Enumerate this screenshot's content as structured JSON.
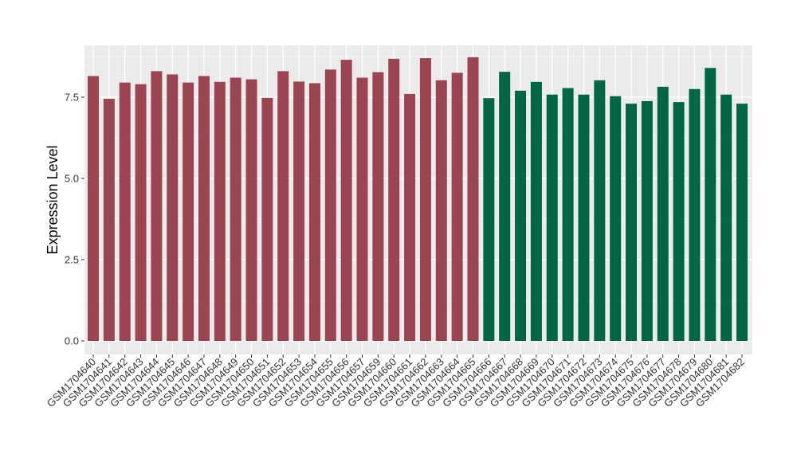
{
  "chart_data": {
    "type": "bar",
    "title": "",
    "xlabel": "",
    "ylabel": "Expression Level",
    "ylim": [
      0,
      8.9
    ],
    "yticks": [
      0.0,
      2.5,
      5.0,
      7.5
    ],
    "ytick_labels": [
      "0.0",
      "2.5",
      "5.0",
      "7.5"
    ],
    "grid": true,
    "legend": "none",
    "panel_background": "#EBEBEB",
    "grid_color": "#FFFFFF",
    "categories": [
      "GSM1704640",
      "GSM1704641",
      "GSM1704642",
      "GSM1704643",
      "GSM1704644",
      "GSM1704645",
      "GSM1704646",
      "GSM1704647",
      "GSM1704648",
      "GSM1704649",
      "GSM1704650",
      "GSM1704651",
      "GSM1704652",
      "GSM1704653",
      "GSM1704654",
      "GSM1704655",
      "GSM1704656",
      "GSM1704657",
      "GSM1704659",
      "GSM1704660",
      "GSM1704661",
      "GSM1704662",
      "GSM1704663",
      "GSM1704664",
      "GSM1704665",
      "GSM1704666",
      "GSM1704667",
      "GSM1704668",
      "GSM1704669",
      "GSM1704670",
      "GSM1704671",
      "GSM1704672",
      "GSM1704673",
      "GSM1704674",
      "GSM1704675",
      "GSM1704676",
      "GSM1704677",
      "GSM1704678",
      "GSM1704679",
      "GSM1704680",
      "GSM1704681",
      "GSM1704682"
    ],
    "values": [
      8.15,
      7.45,
      7.95,
      7.9,
      8.3,
      8.2,
      7.95,
      8.15,
      7.97,
      8.1,
      8.05,
      7.48,
      8.3,
      7.98,
      7.93,
      8.35,
      8.65,
      8.1,
      8.27,
      8.68,
      7.6,
      8.7,
      8.02,
      8.25,
      8.73,
      7.47,
      8.28,
      7.7,
      7.97,
      7.58,
      7.78,
      7.58,
      8.02,
      7.53,
      7.3,
      7.38,
      7.82,
      7.35,
      7.75,
      8.4,
      7.58,
      7.3
    ],
    "colors": [
      "#9B4452",
      "#9B4452",
      "#9B4452",
      "#9B4452",
      "#9B4452",
      "#9B4452",
      "#9B4452",
      "#9B4452",
      "#9B4452",
      "#9B4452",
      "#9B4452",
      "#9B4452",
      "#9B4452",
      "#9B4452",
      "#9B4452",
      "#9B4452",
      "#9B4452",
      "#9B4452",
      "#9B4452",
      "#9B4452",
      "#9B4452",
      "#9B4452",
      "#9B4452",
      "#9B4452",
      "#9B4452",
      "#006645",
      "#006645",
      "#006645",
      "#006645",
      "#006645",
      "#006645",
      "#006645",
      "#006645",
      "#006645",
      "#006645",
      "#006645",
      "#006645",
      "#006645",
      "#006645",
      "#006645",
      "#006645",
      "#006645"
    ]
  }
}
